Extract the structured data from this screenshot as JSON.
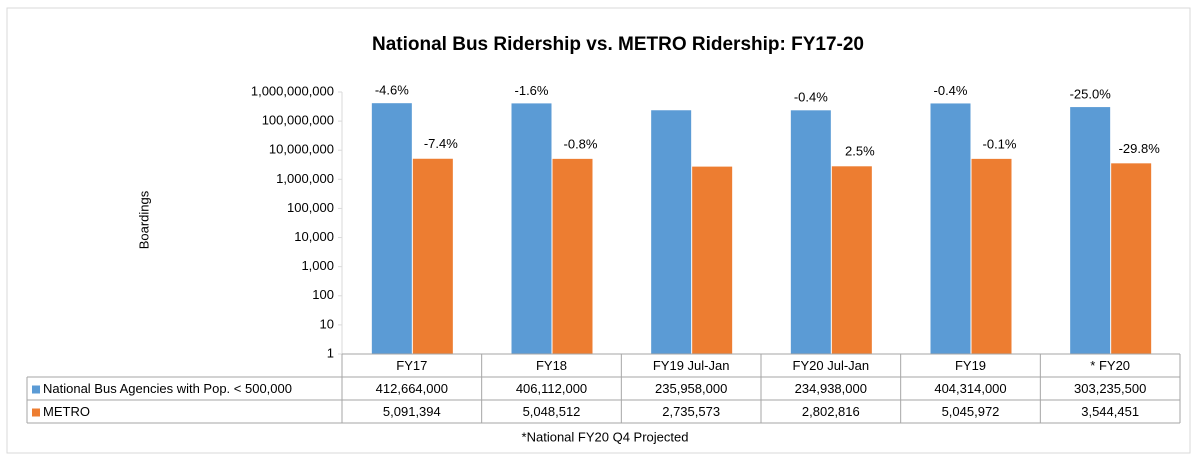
{
  "chart_data": {
    "type": "bar",
    "title": "National Bus Ridership vs. METRO Ridership: FY17-20",
    "y_label": "Boardings",
    "log_scale": true,
    "categories": [
      "FY17",
      "FY18",
      "FY19 Jul-Jan",
      "FY20 Jul-Jan",
      "FY19",
      "* FY20"
    ],
    "series": [
      {
        "name": "National Bus Agencies with Pop. < 500,000",
        "color": "#5b9bd5",
        "values": [
          412664000,
          406112000,
          235958000,
          234938000,
          404314000,
          303235500
        ],
        "value_labels": [
          "412,664,000",
          "406,112,000",
          "235,958,000",
          "234,938,000",
          "404,314,000",
          "303,235,500"
        ],
        "change_labels": [
          "-4.6%",
          "-1.6%",
          null,
          "-0.4%",
          "-0.4%",
          "-25.0%"
        ]
      },
      {
        "name": "METRO",
        "color": "#ed7d31",
        "values": [
          5091394,
          5048512,
          2735573,
          2802816,
          5045972,
          3544451
        ],
        "value_labels": [
          "5,091,394",
          "5,048,512",
          "2,735,573",
          "2,802,816",
          "5,045,972",
          "3,544,451"
        ],
        "change_labels": [
          "-7.4%",
          "-0.8%",
          null,
          "2.5%",
          "-0.1%",
          "-29.8%"
        ]
      }
    ],
    "ylim": [
      1,
      1000000000
    ],
    "yticks": [
      1,
      10,
      100,
      {
        "value": 1000,
        "label": "1,000"
      },
      {
        "value": 10000,
        "label": "10,000"
      },
      {
        "value": 100000,
        "label": "100,000"
      },
      {
        "value": 1000000,
        "label": "1,000,000"
      },
      {
        "value": 10000000,
        "label": "10,000,000"
      },
      {
        "value": 100000000,
        "label": "100,000,000"
      },
      {
        "value": 1000000000,
        "label": "1,000,000,000"
      }
    ],
    "footnote": "*National FY20 Q4 Projected"
  }
}
